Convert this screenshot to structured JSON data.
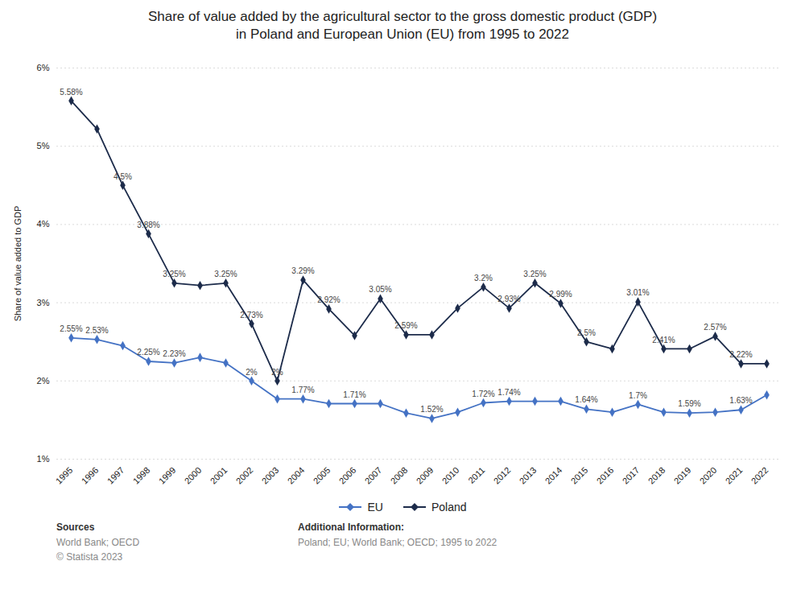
{
  "chart_data": {
    "type": "line",
    "title": "Share of value added by the agricultural sector to the gross domestic product (GDP)",
    "subtitle": "in Poland and European Union (EU) from 1995 to 2022",
    "ylabel": "Share of value added to GDP",
    "categories": [
      "1995",
      "1996",
      "1997",
      "1998",
      "1999",
      "2000",
      "2001",
      "2002",
      "2003",
      "2004",
      "2005",
      "2006",
      "2007",
      "2008",
      "2009",
      "2010",
      "2011",
      "2012",
      "2013",
      "2014",
      "2015",
      "2016",
      "2017",
      "2018",
      "2019",
      "2020",
      "2021",
      "2022"
    ],
    "series": [
      {
        "name": "EU",
        "color": "#4472c4",
        "marker": "diamond",
        "values": [
          2.55,
          2.53,
          2.45,
          2.25,
          2.23,
          2.3,
          2.23,
          2.0,
          1.77,
          1.77,
          1.71,
          1.71,
          1.71,
          1.59,
          1.52,
          1.6,
          1.72,
          1.74,
          1.74,
          1.74,
          1.64,
          1.6,
          1.7,
          1.6,
          1.59,
          1.6,
          1.63,
          1.82
        ],
        "value_labels": [
          "2.55%",
          "2.53%",
          null,
          "2.25%",
          "2.23%",
          null,
          null,
          "2%",
          null,
          "1.77%",
          null,
          "1.71%",
          null,
          null,
          "1.52%",
          null,
          "1.72%",
          "1.74%",
          null,
          null,
          "1.64%",
          null,
          "1.7%",
          null,
          "1.59%",
          null,
          "1.63%",
          null
        ]
      },
      {
        "name": "Poland",
        "color": "#1c2b4a",
        "marker": "diamond",
        "values": [
          5.58,
          5.22,
          4.5,
          3.88,
          3.25,
          3.22,
          3.25,
          2.73,
          2.0,
          3.29,
          2.92,
          2.58,
          3.05,
          2.59,
          2.59,
          2.93,
          3.2,
          2.93,
          3.25,
          2.99,
          2.5,
          2.41,
          3.01,
          2.41,
          2.41,
          2.57,
          2.22,
          2.22
        ],
        "value_labels": [
          "5.58%",
          null,
          "4.5%",
          "3.88%",
          "3.25%",
          null,
          "3.25%",
          "2.73%",
          "2%",
          "3.29%",
          "2.92%",
          null,
          "3.05%",
          "2.59%",
          null,
          null,
          "3.2%",
          "2.93%",
          "3.25%",
          "2.99%",
          "2.5%",
          null,
          "3.01%",
          "2.41%",
          null,
          "2.57%",
          "2.22%",
          null
        ]
      }
    ],
    "ylim": [
      1.0,
      6.0
    ],
    "yticks": [
      {
        "value": 1.0,
        "label": "1%"
      },
      {
        "value": 2.0,
        "label": "2%"
      },
      {
        "value": 3.0,
        "label": "3%"
      },
      {
        "value": 4.0,
        "label": "4%"
      },
      {
        "value": 5.0,
        "label": "5%"
      },
      {
        "value": 6.0,
        "label": "6%"
      }
    ],
    "grid": true,
    "legend": "bottom",
    "data_labels": true,
    "annotations": [
      {
        "title": "Sources",
        "text": "World Bank; OECD\n© Statista 2023"
      },
      {
        "title": "Additional Information:",
        "text": "Poland; EU; World Bank; OECD; 1995 to 2022"
      }
    ]
  }
}
